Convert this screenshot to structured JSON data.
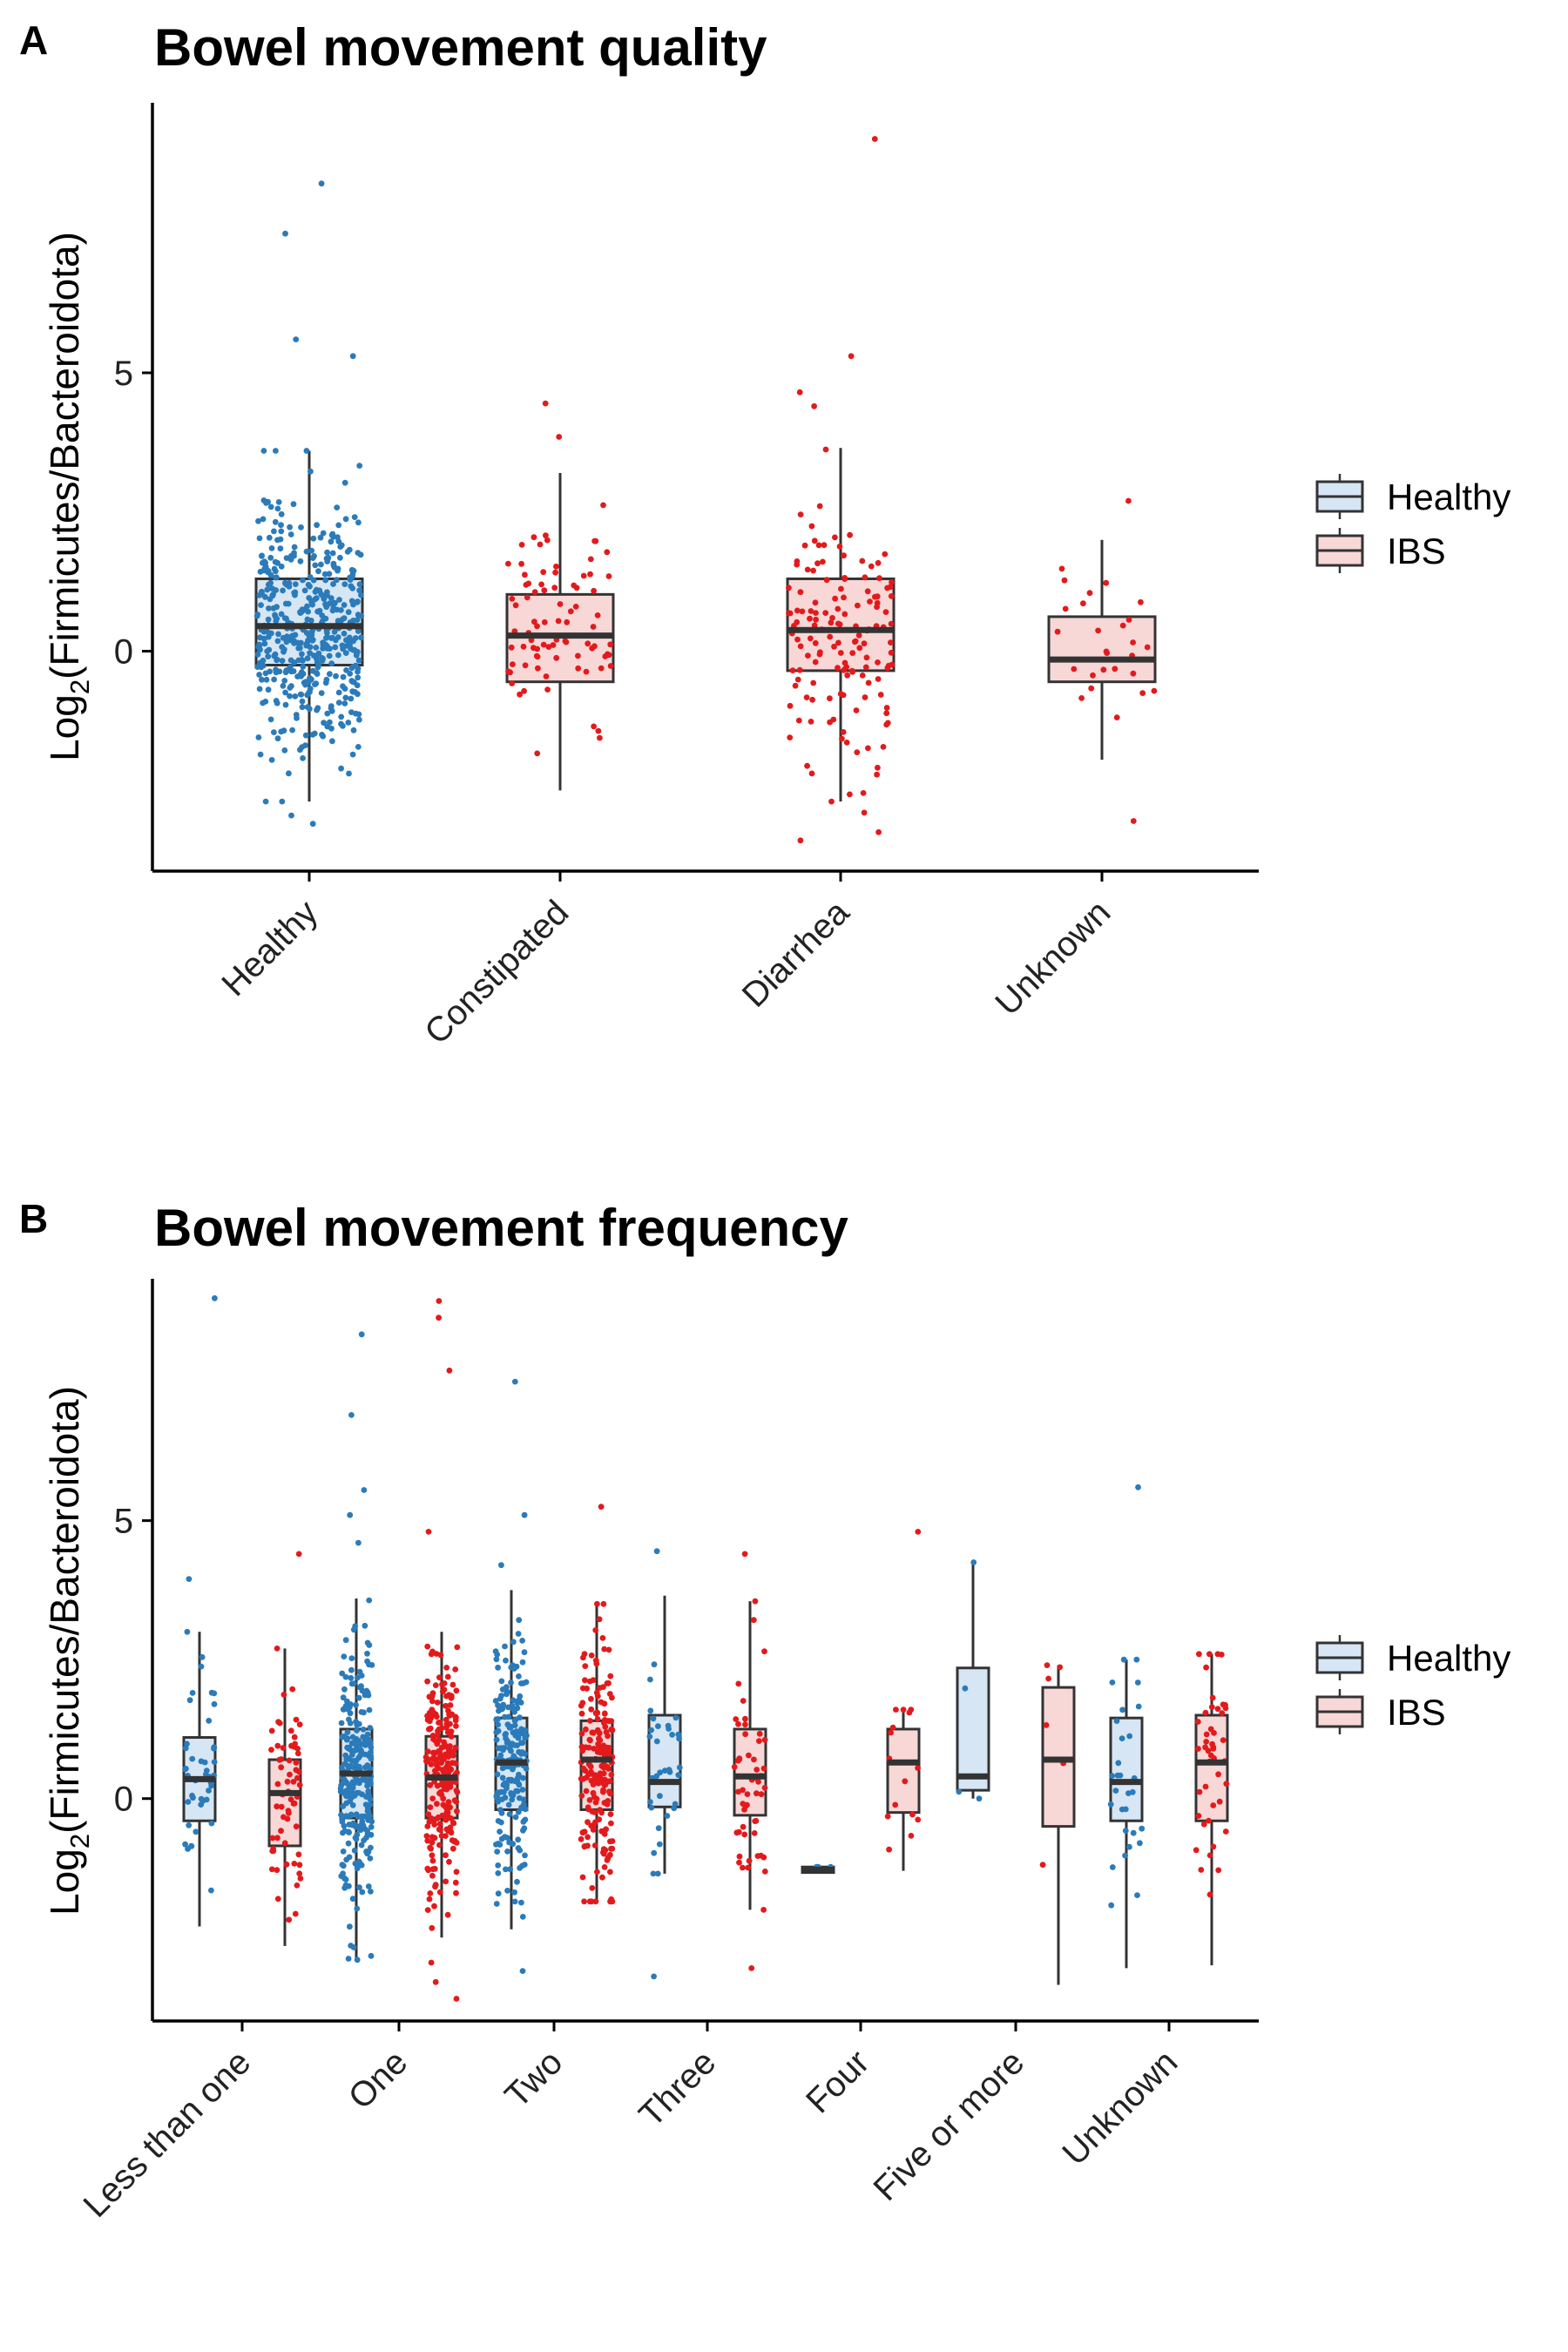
{
  "colors": {
    "healthy_fill": "#d6e6f4",
    "healthy_point": "#2b7bba",
    "ibs_fill": "#f8d7d7",
    "ibs_point": "#e31a1c",
    "box_stroke": "#333333"
  },
  "legend": {
    "items": [
      "Healthy",
      "IBS"
    ]
  },
  "chart_data": [
    {
      "panel": "A",
      "type": "box",
      "title": "Bowel movement quality",
      "xlabel": "",
      "ylabel_main": "Log",
      "ylabel_sub": "2",
      "ylabel_rest": "(Firmicutes/Bacteroidota)",
      "ylim": [
        -3.95,
        9.85
      ],
      "yticks": [
        0,
        5
      ],
      "categories": [
        "Healthy",
        "Constipated",
        "Diarrhea",
        "Unknown"
      ],
      "boxes": [
        {
          "cat": 0,
          "group": "Healthy",
          "q1": -0.25,
          "median": 0.45,
          "q3": 1.3,
          "wlo": -2.7,
          "whi": 3.6,
          "n": 500,
          "min": -3.1,
          "max": 8.4,
          "out": [
            5.6,
            5.3,
            7.5,
            8.4,
            -3.1,
            -2.95
          ]
        },
        {
          "cat": 1,
          "group": "IBS",
          "q1": -0.55,
          "median": 0.28,
          "q3": 1.02,
          "wlo": -2.5,
          "whi": 3.2,
          "n": 85,
          "min": -2.5,
          "max": 4.45,
          "out": [
            3.85,
            4.45
          ]
        },
        {
          "cat": 2,
          "group": "IBS",
          "q1": -0.35,
          "median": 0.38,
          "q3": 1.3,
          "wlo": -2.7,
          "whi": 3.65,
          "n": 150,
          "min": -3.4,
          "max": 9.2,
          "out": [
            4.4,
            4.65,
            5.3,
            9.2,
            -3.4,
            -3.25,
            -2.9
          ]
        },
        {
          "cat": 3,
          "group": "IBS",
          "q1": -0.55,
          "median": -0.15,
          "q3": 0.62,
          "wlo": -1.95,
          "whi": 2.0,
          "n": 28,
          "min": -3.05,
          "max": 2.7,
          "out": [
            2.7,
            -3.05
          ]
        }
      ]
    },
    {
      "panel": "B",
      "type": "box",
      "title": "Bowel movement frequency",
      "xlabel": "",
      "ylabel_main": "Log",
      "ylabel_sub": "2",
      "ylabel_rest": "(Firmicutes/Bacteroidota)",
      "ylim": [
        -4.0,
        9.35
      ],
      "yticks": [
        0,
        5
      ],
      "categories": [
        "Less than one",
        "One",
        "Two",
        "Three",
        "Four",
        "Five or more",
        "Unknown"
      ],
      "boxes": [
        {
          "cat": 0,
          "group": "Healthy",
          "q1": -0.4,
          "median": 0.35,
          "q3": 1.1,
          "wlo": -2.3,
          "whi": 3.0,
          "n": 45,
          "min": -2.35,
          "max": 9.0,
          "out": [
            3.95,
            9.0
          ]
        },
        {
          "cat": 0,
          "group": "IBS",
          "q1": -0.85,
          "median": 0.1,
          "q3": 0.7,
          "wlo": -2.65,
          "whi": 2.7,
          "n": 65,
          "min": -2.65,
          "max": 4.4,
          "out": [
            4.4
          ]
        },
        {
          "cat": 1,
          "group": "Healthy",
          "q1": -0.35,
          "median": 0.45,
          "q3": 1.25,
          "wlo": -2.9,
          "whi": 3.6,
          "n": 260,
          "min": -3.0,
          "max": 8.35,
          "out": [
            5.55,
            6.9,
            8.35,
            5.1,
            4.6
          ]
        },
        {
          "cat": 1,
          "group": "IBS",
          "q1": -0.35,
          "median": 0.38,
          "q3": 1.12,
          "wlo": -2.5,
          "whi": 3.0,
          "n": 230,
          "min": -3.6,
          "max": 8.95,
          "out": [
            4.8,
            7.7,
            8.65,
            8.95,
            -3.6,
            -3.3,
            -2.95
          ]
        },
        {
          "cat": 2,
          "group": "Healthy",
          "q1": -0.2,
          "median": 0.65,
          "q3": 1.45,
          "wlo": -2.35,
          "whi": 3.75,
          "n": 210,
          "min": -3.1,
          "max": 7.5,
          "out": [
            4.2,
            5.1,
            7.5,
            -3.1
          ]
        },
        {
          "cat": 2,
          "group": "IBS",
          "q1": -0.2,
          "median": 0.7,
          "q3": 1.4,
          "wlo": -1.85,
          "whi": 3.5,
          "n": 190,
          "min": -1.85,
          "max": 5.25,
          "out": [
            5.25
          ]
        },
        {
          "cat": 3,
          "group": "Healthy",
          "q1": -0.15,
          "median": 0.3,
          "q3": 1.5,
          "wlo": -1.35,
          "whi": 3.65,
          "n": 35,
          "min": -3.2,
          "max": 4.45,
          "out": [
            4.45,
            -3.2
          ]
        },
        {
          "cat": 3,
          "group": "IBS",
          "q1": -0.3,
          "median": 0.4,
          "q3": 1.25,
          "wlo": -2.0,
          "whi": 3.55,
          "n": 55,
          "min": -3.05,
          "max": 4.4,
          "out": [
            4.4,
            -3.05
          ]
        },
        {
          "cat": 4,
          "group": "Healthy",
          "q1": -1.33,
          "median": -1.28,
          "q3": -1.23,
          "wlo": -1.33,
          "whi": -1.23,
          "n": 3,
          "min": -1.33,
          "max": -1.23,
          "out": []
        },
        {
          "cat": 4,
          "group": "IBS",
          "q1": -0.25,
          "median": 0.65,
          "q3": 1.25,
          "wlo": -1.3,
          "whi": 1.6,
          "n": 16,
          "min": -1.3,
          "max": 4.8,
          "out": [
            4.8
          ]
        },
        {
          "cat": 5,
          "group": "Healthy",
          "q1": 0.15,
          "median": 0.4,
          "q3": 2.35,
          "wlo": 0.0,
          "whi": 4.25,
          "n": 4,
          "min": 0.0,
          "max": 4.25,
          "out": []
        },
        {
          "cat": 5,
          "group": "IBS",
          "q1": -0.5,
          "median": 0.7,
          "q3": 2.0,
          "wlo": -3.35,
          "whi": 2.4,
          "n": 6,
          "min": -3.35,
          "max": 2.4,
          "out": []
        },
        {
          "cat": 6,
          "group": "Healthy",
          "q1": -0.4,
          "median": 0.3,
          "q3": 1.45,
          "wlo": -3.05,
          "whi": 2.5,
          "n": 30,
          "min": -3.05,
          "max": 5.6,
          "out": [
            5.6
          ]
        },
        {
          "cat": 6,
          "group": "IBS",
          "q1": -0.4,
          "median": 0.65,
          "q3": 1.5,
          "wlo": -3.0,
          "whi": 2.6,
          "n": 45,
          "min": -3.0,
          "max": 2.6,
          "out": []
        }
      ]
    }
  ]
}
